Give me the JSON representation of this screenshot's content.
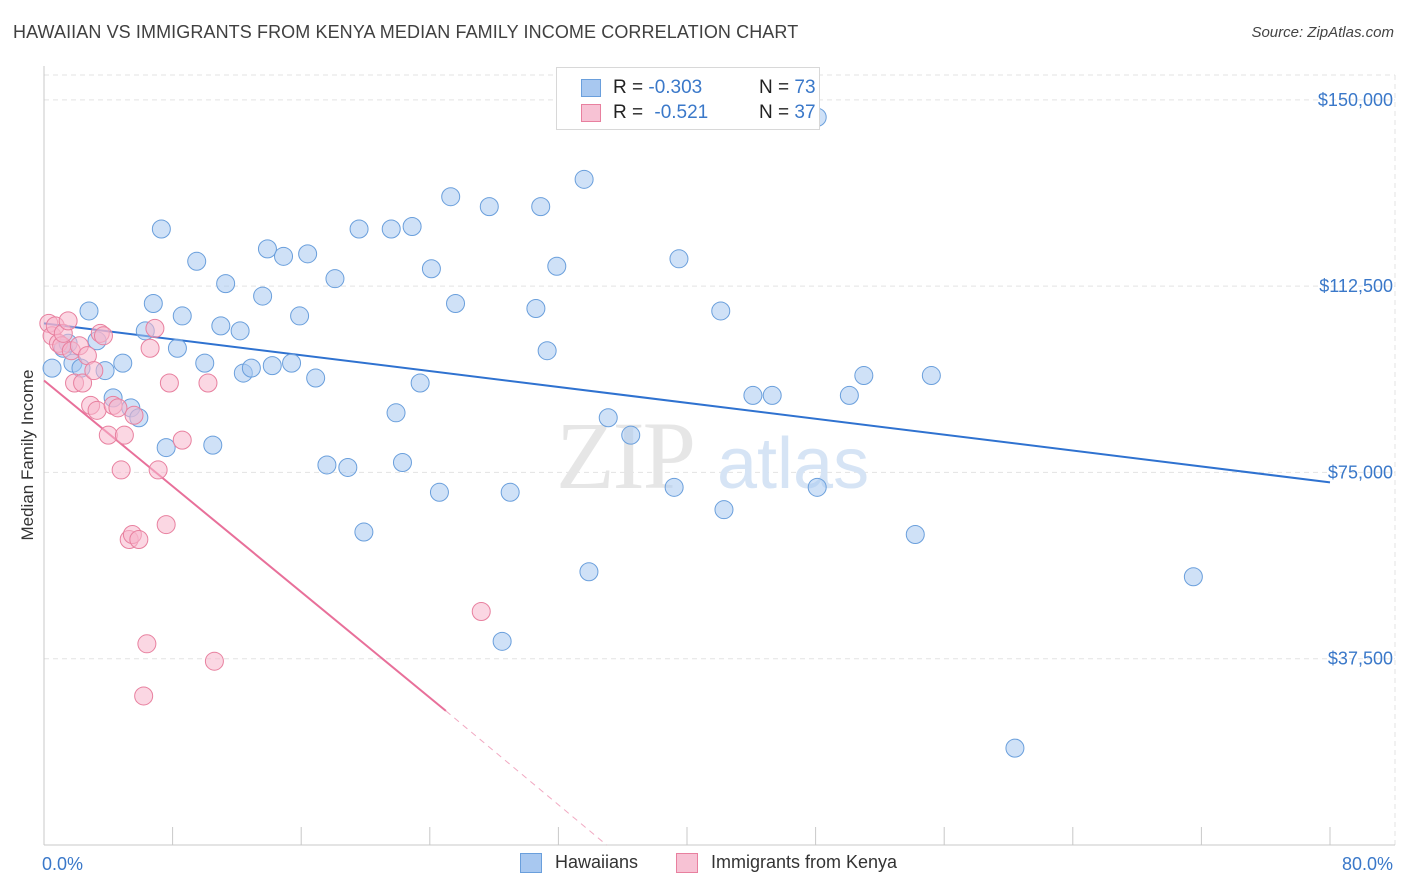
{
  "header": {
    "title": "HAWAIIAN VS IMMIGRANTS FROM KENYA MEDIAN FAMILY INCOME CORRELATION CHART",
    "source": "Source: ZipAtlas.com"
  },
  "watermark": {
    "zip": "ZIP",
    "atlas": "atlas"
  },
  "legend": {
    "rows": [
      {
        "r_label": "R = ",
        "r_value": "-0.303",
        "n_label": "N = ",
        "n_value": "73"
      },
      {
        "r_label": "R = ",
        "r_value": "-0.521",
        "n_label": "N = ",
        "n_value": "37"
      }
    ]
  },
  "bottom_legend": {
    "series1": "Hawaiians",
    "series2": "Immigrants from Kenya"
  },
  "colors": {
    "blue_fill": "#a8c8f0",
    "blue_stroke": "#6a9fdc",
    "blue_line": "#2f72d0",
    "pink_fill": "#f7b7cc",
    "pink_stroke": "#e8809f",
    "pink_line": "#e8709a",
    "grid": "#e3e3e3",
    "tick": "#3a78c9"
  },
  "chart_data": {
    "type": "scatter",
    "title": "HAWAIIAN VS IMMIGRANTS FROM KENYA MEDIAN FAMILY INCOME CORRELATION CHART",
    "xlabel": "",
    "ylabel": "Median Family Income",
    "xlim": [
      0,
      80
    ],
    "ylim": [
      0,
      155000
    ],
    "x_tick_labels": [
      "0.0%",
      "80.0%"
    ],
    "y_ticks": [
      37500,
      75000,
      112500,
      150000
    ],
    "y_tick_labels": [
      "$37,500",
      "$75,000",
      "$112,500",
      "$150,000"
    ],
    "series": [
      {
        "name": "Hawaiians",
        "r": -0.303,
        "n": 73,
        "trend": {
          "x0": 0,
          "y0": 105000,
          "x1": 80,
          "y1": 73000
        },
        "points": [
          [
            0.5,
            96000
          ],
          [
            1.2,
            100000
          ],
          [
            1.5,
            101000
          ],
          [
            1.8,
            97000
          ],
          [
            2.3,
            96000
          ],
          [
            2.8,
            107500
          ],
          [
            3.3,
            101500
          ],
          [
            3.8,
            95500
          ],
          [
            4.3,
            90000
          ],
          [
            4.9,
            97000
          ],
          [
            5.4,
            88000
          ],
          [
            5.9,
            86000
          ],
          [
            6.3,
            103500
          ],
          [
            6.8,
            109000
          ],
          [
            7.3,
            124000
          ],
          [
            7.6,
            80000
          ],
          [
            8.3,
            100000
          ],
          [
            8.6,
            106500
          ],
          [
            9.5,
            117500
          ],
          [
            10.0,
            97000
          ],
          [
            10.5,
            80500
          ],
          [
            11.0,
            104500
          ],
          [
            11.3,
            113000
          ],
          [
            12.2,
            103500
          ],
          [
            12.4,
            95000
          ],
          [
            12.9,
            96000
          ],
          [
            13.6,
            110500
          ],
          [
            13.9,
            120000
          ],
          [
            14.2,
            96500
          ],
          [
            14.9,
            118500
          ],
          [
            15.4,
            97000
          ],
          [
            15.9,
            106500
          ],
          [
            16.4,
            119000
          ],
          [
            16.9,
            94000
          ],
          [
            17.6,
            76500
          ],
          [
            18.1,
            114000
          ],
          [
            18.9,
            76000
          ],
          [
            19.6,
            124000
          ],
          [
            19.9,
            63000
          ],
          [
            21.6,
            124000
          ],
          [
            21.9,
            87000
          ],
          [
            22.3,
            77000
          ],
          [
            22.9,
            124500
          ],
          [
            23.4,
            93000
          ],
          [
            24.1,
            116000
          ],
          [
            24.6,
            71000
          ],
          [
            25.3,
            130500
          ],
          [
            25.6,
            109000
          ],
          [
            27.7,
            128500
          ],
          [
            28.5,
            41000
          ],
          [
            29.0,
            71000
          ],
          [
            30.6,
            108000
          ],
          [
            30.9,
            128500
          ],
          [
            31.3,
            99500
          ],
          [
            31.9,
            116500
          ],
          [
            33.6,
            134000
          ],
          [
            33.9,
            55000
          ],
          [
            35.1,
            86000
          ],
          [
            36.5,
            82500
          ],
          [
            39.2,
            72000
          ],
          [
            39.5,
            118000
          ],
          [
            42.1,
            107500
          ],
          [
            42.3,
            67500
          ],
          [
            44.1,
            90500
          ],
          [
            45.3,
            90500
          ],
          [
            48.1,
            146500
          ],
          [
            48.1,
            72000
          ],
          [
            50.1,
            90500
          ],
          [
            51.0,
            94500
          ],
          [
            54.2,
            62500
          ],
          [
            55.2,
            94500
          ],
          [
            60.4,
            19500
          ],
          [
            71.5,
            54000
          ]
        ]
      },
      {
        "name": "Immigrants from Kenya",
        "r": -0.521,
        "n": 37,
        "trend": {
          "x0": 0,
          "y0": 93500,
          "x1": 25,
          "y1": 27000,
          "dash_x1": 35,
          "dash_y1": 0
        },
        "points": [
          [
            0.3,
            105000
          ],
          [
            0.5,
            102500
          ],
          [
            0.7,
            104500
          ],
          [
            0.9,
            101000
          ],
          [
            1.1,
            100500
          ],
          [
            1.2,
            103000
          ],
          [
            1.5,
            105500
          ],
          [
            1.7,
            99500
          ],
          [
            1.9,
            93000
          ],
          [
            2.2,
            100500
          ],
          [
            2.4,
            93000
          ],
          [
            2.7,
            98500
          ],
          [
            2.9,
            88500
          ],
          [
            3.1,
            95500
          ],
          [
            3.3,
            87500
          ],
          [
            3.5,
            103000
          ],
          [
            3.7,
            102500
          ],
          [
            4.0,
            82500
          ],
          [
            4.3,
            88500
          ],
          [
            4.6,
            88000
          ],
          [
            4.8,
            75500
          ],
          [
            5.0,
            82500
          ],
          [
            5.3,
            61500
          ],
          [
            5.5,
            62500
          ],
          [
            5.6,
            86500
          ],
          [
            5.9,
            61500
          ],
          [
            6.2,
            30000
          ],
          [
            6.4,
            40500
          ],
          [
            6.6,
            100000
          ],
          [
            6.9,
            104000
          ],
          [
            7.1,
            75500
          ],
          [
            7.6,
            64500
          ],
          [
            7.8,
            93000
          ],
          [
            8.6,
            81500
          ],
          [
            10.2,
            93000
          ],
          [
            10.6,
            37000
          ],
          [
            27.2,
            47000
          ]
        ]
      }
    ]
  }
}
